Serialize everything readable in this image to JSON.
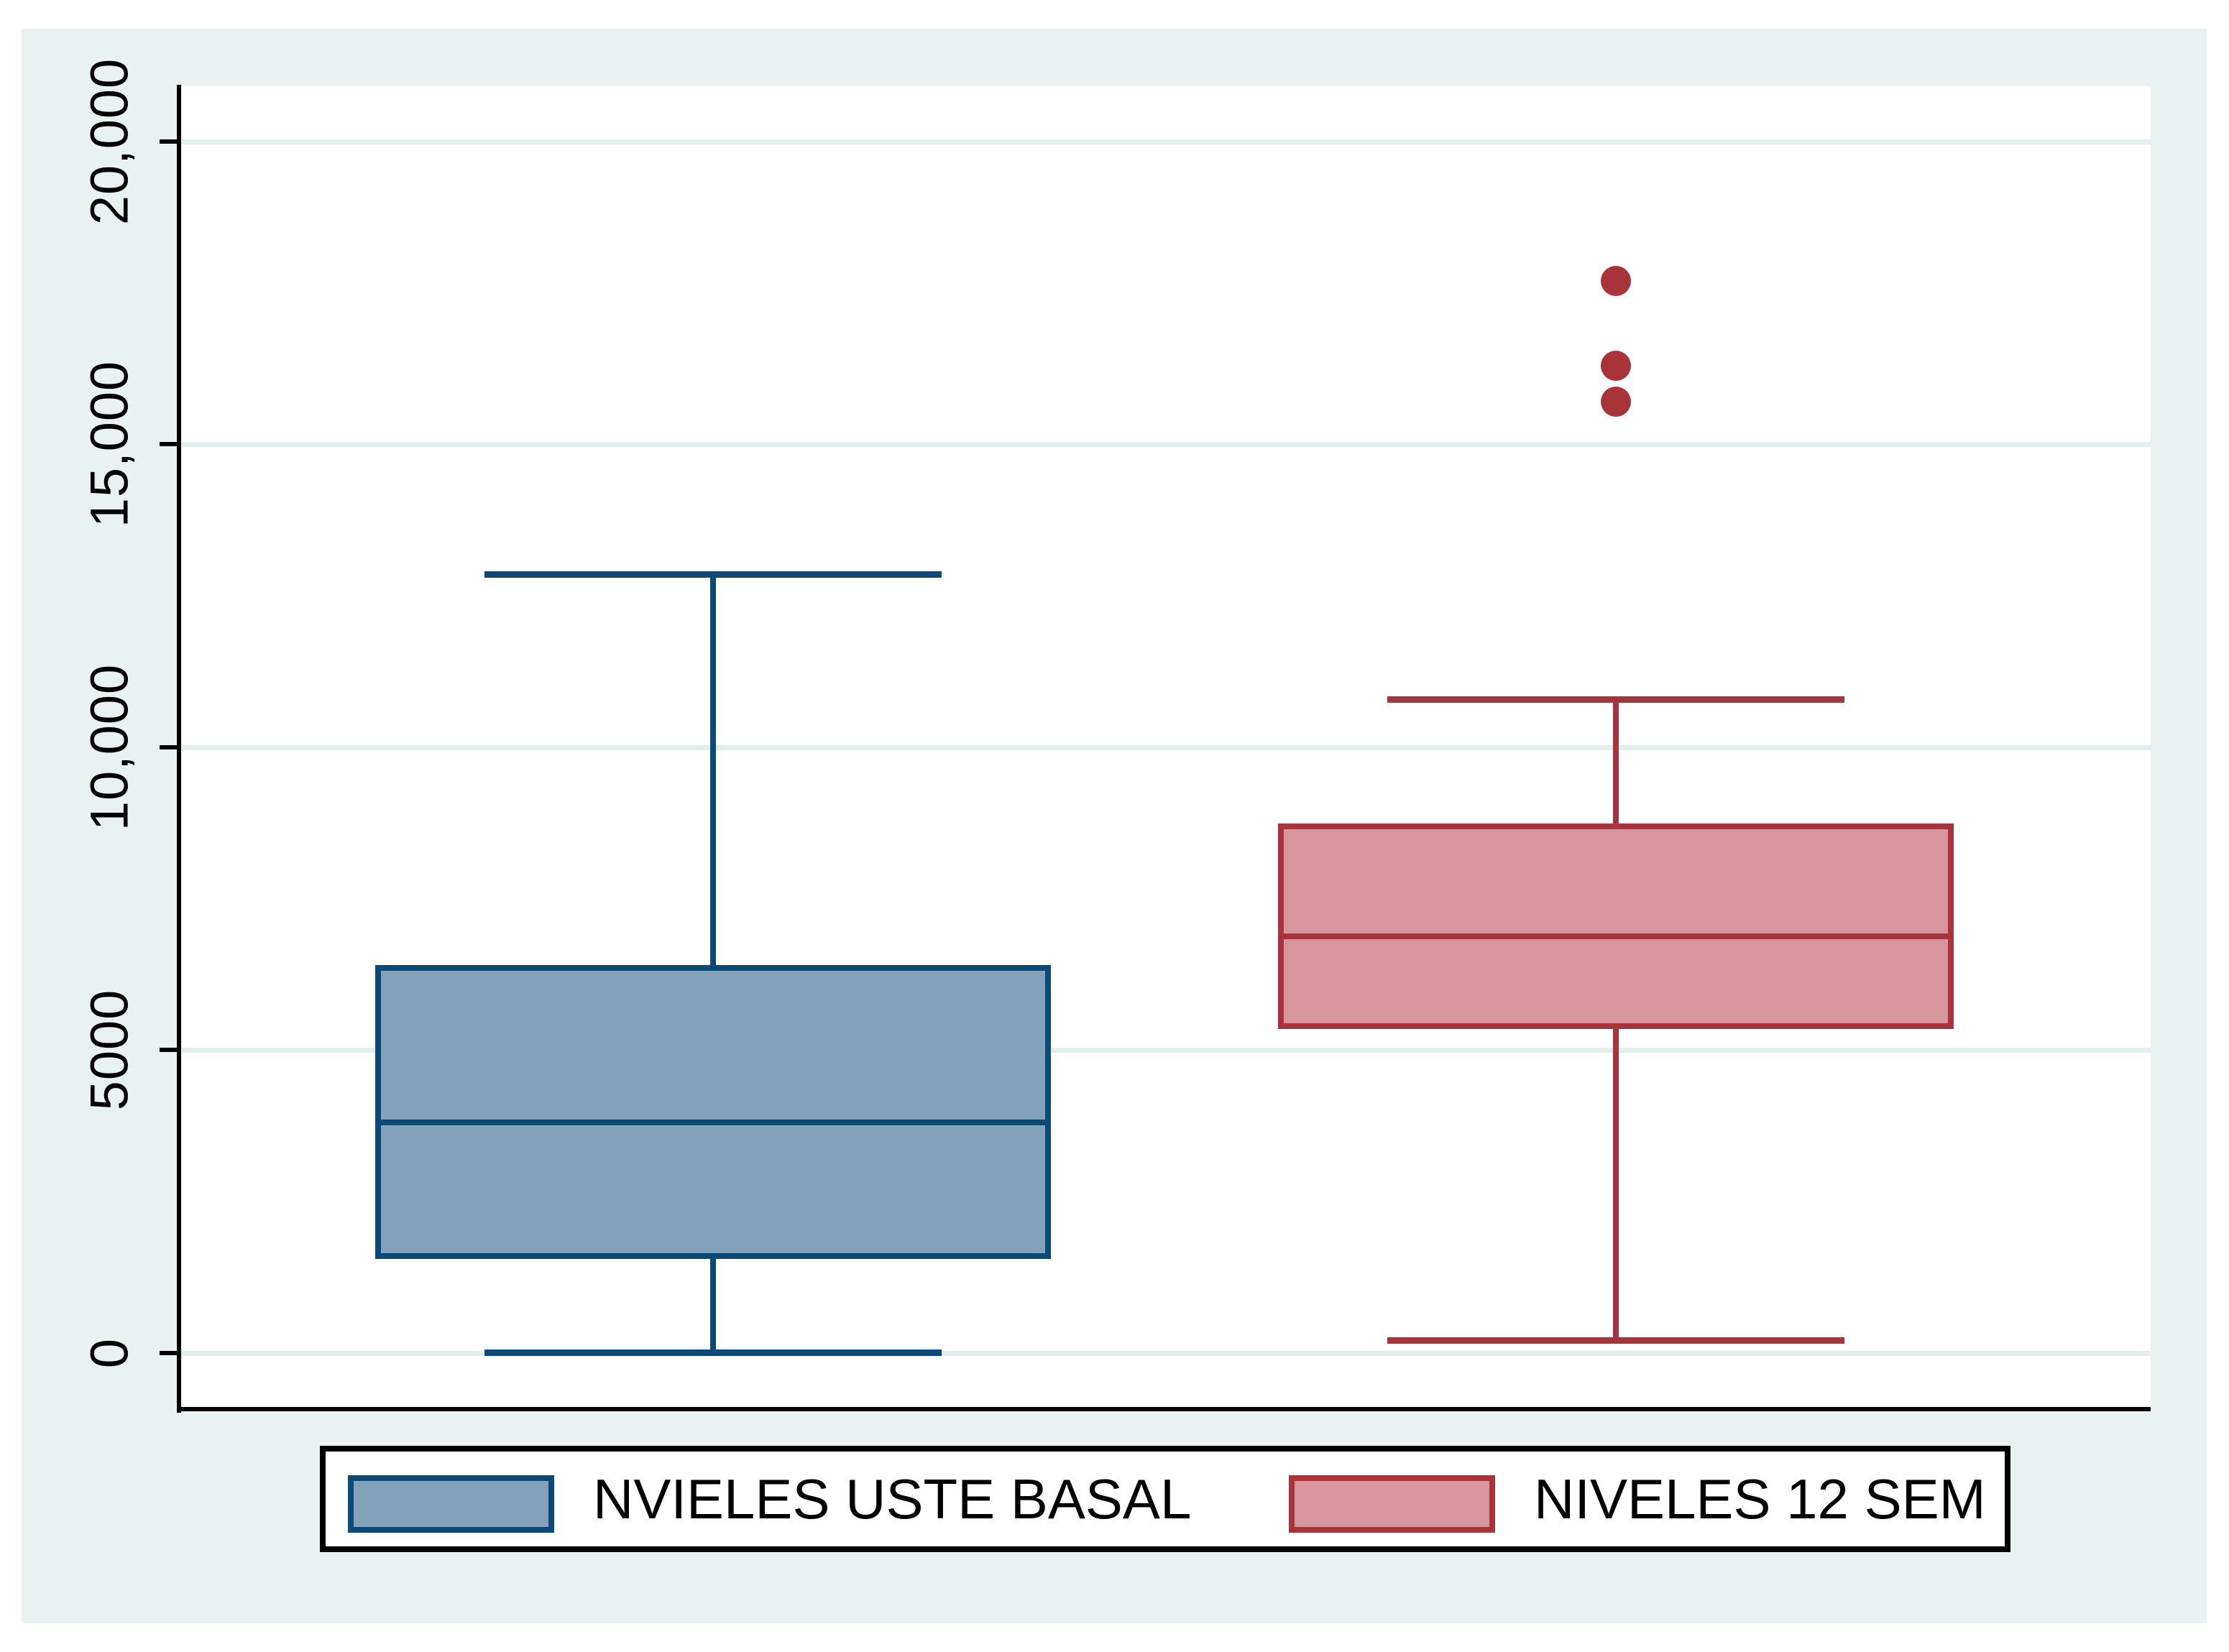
{
  "figure": {
    "background_color": "#e9f2f1",
    "plot_background_color": "#ffffff",
    "gridline_color": "#e2eeec",
    "axis_color": "#000000",
    "legend_border_color": "#000000"
  },
  "y_axis": {
    "tick_values": [
      0,
      5000,
      10000,
      15000,
      20000
    ],
    "tick_labels": [
      "0",
      "5000",
      "10,000",
      "15,000",
      "20,000"
    ]
  },
  "legend": {
    "items": [
      {
        "label": "NVIELES USTE BASAL",
        "swatch": "blue-box-swatch"
      },
      {
        "label": "NIVELES 12 SEM",
        "swatch": "red-box-swatch"
      }
    ]
  },
  "chart_data": {
    "type": "boxplot",
    "orientation": "vertical",
    "title": "",
    "xlabel": "",
    "ylabel": "",
    "ylim": [
      0,
      21000
    ],
    "grid": "horizontal",
    "legend_position": "bottom",
    "series": [
      {
        "name": "NVIELES USTE BASAL",
        "lower_whisker": 0,
        "q1": 1550,
        "median": 3800,
        "q3": 6400,
        "upper_whisker": 12850,
        "outliers": [],
        "fill_color": "#84a3ba",
        "line_color": "#0b4a78"
      },
      {
        "name": "NIVELES 12 SEM",
        "lower_whisker": 200,
        "q1": 5350,
        "median": 6880,
        "q3": 8740,
        "upper_whisker": 10780,
        "outliers": [
          17700,
          16300,
          15700
        ],
        "fill_color": "#d6969c",
        "line_color": "#a8333b"
      }
    ]
  }
}
